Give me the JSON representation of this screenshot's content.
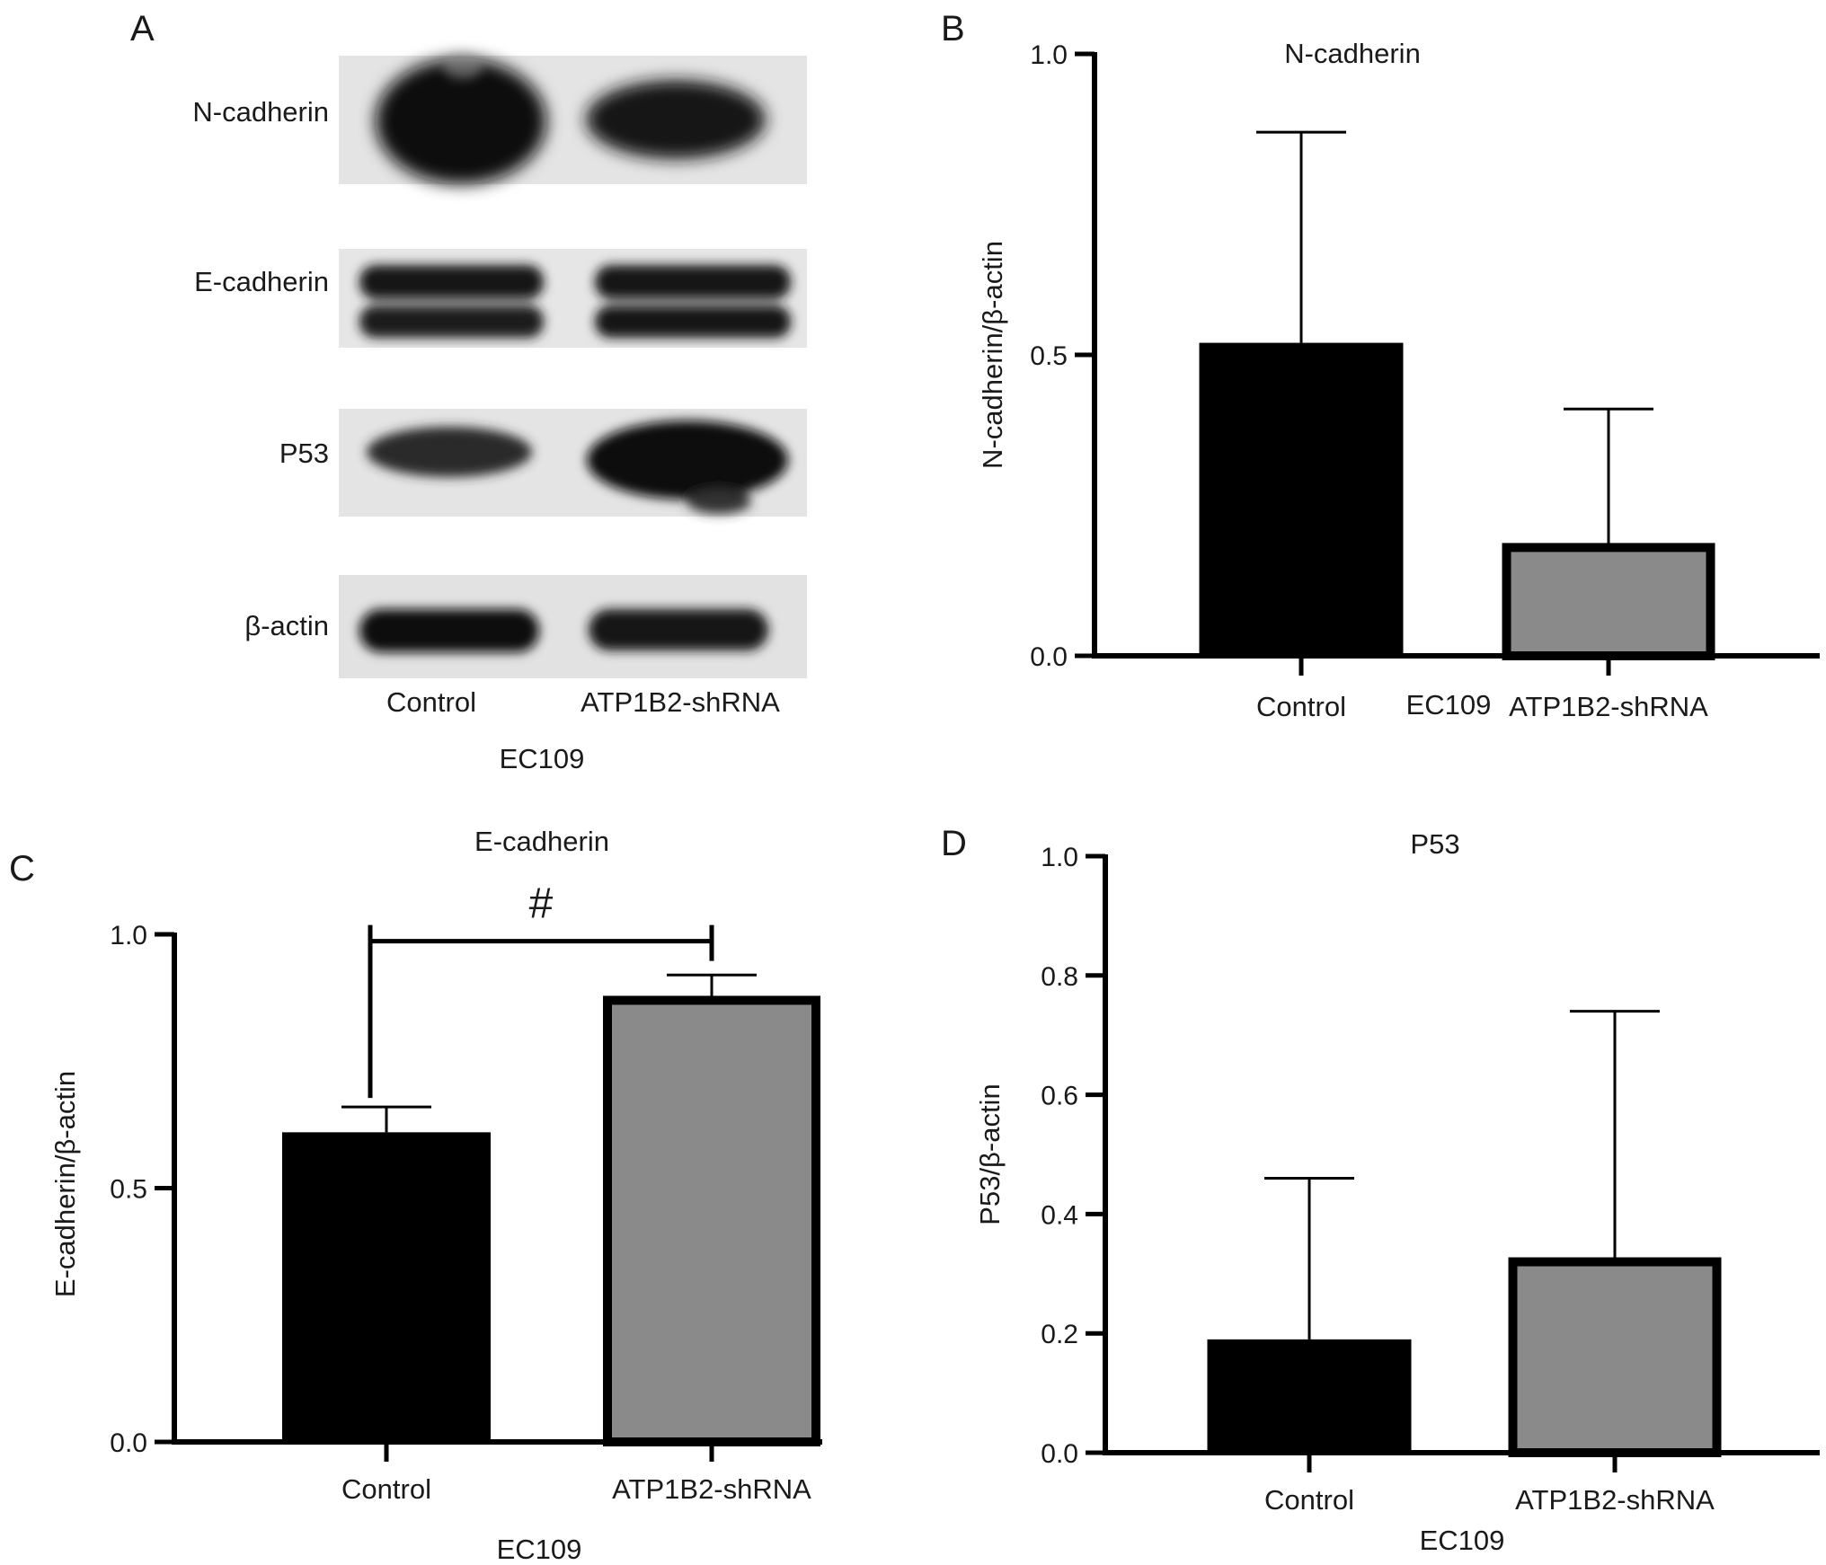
{
  "panels": {
    "a": "A",
    "b": "B",
    "c": "C",
    "d": "D"
  },
  "blot": {
    "rows": [
      "N-cadherin",
      "E-cadherin",
      "P53",
      "β-actin"
    ],
    "lanes": [
      "Control",
      "ATP1B2-shRNA"
    ],
    "cell_line": "EC109"
  },
  "chart_data": [
    {
      "panel": "B",
      "type": "bar",
      "title": "N-cadherin",
      "ylabel": "N-cadherin/β-actin",
      "xlabel": "EC109",
      "categories": [
        "Control",
        "ATP1B2-shRNA"
      ],
      "values": [
        0.52,
        0.18
      ],
      "error_upper": [
        0.87,
        0.41
      ],
      "ylim": [
        0,
        1.0
      ],
      "yticks": [
        0.0,
        0.5,
        1.0
      ],
      "ytick_labels": [
        "0.0",
        "0.5",
        "1.0"
      ],
      "bar_colors": [
        "#000000",
        "#8a8a8a"
      ],
      "significance": []
    },
    {
      "panel": "C",
      "type": "bar",
      "title": "E-cadherin",
      "ylabel": "E-cadherin/β-actin",
      "xlabel": "EC109",
      "categories": [
        "Control",
        "ATP1B2-shRNA"
      ],
      "values": [
        0.61,
        0.87
      ],
      "error_upper": [
        0.66,
        0.92
      ],
      "ylim": [
        0,
        1.0
      ],
      "yticks": [
        0.0,
        0.5,
        1.0
      ],
      "ytick_labels": [
        "0.0",
        "0.5",
        "1.0"
      ],
      "bar_colors": [
        "#000000",
        "#8a8a8a"
      ],
      "significance": [
        {
          "from": 0,
          "to": 1,
          "label": "#",
          "y": 0.99
        }
      ]
    },
    {
      "panel": "D",
      "type": "bar",
      "title": "P53",
      "ylabel": "P53/β-actin",
      "xlabel": "EC109",
      "categories": [
        "Control",
        "ATP1B2-shRNA"
      ],
      "values": [
        0.19,
        0.32
      ],
      "error_upper": [
        0.46,
        0.74
      ],
      "ylim": [
        0,
        1.0
      ],
      "yticks": [
        0.0,
        0.2,
        0.4,
        0.6,
        0.8,
        1.0
      ],
      "ytick_labels": [
        "0.0",
        "0.2",
        "0.4",
        "0.6",
        "0.8",
        "1.0"
      ],
      "bar_colors": [
        "#000000",
        "#8a8a8a"
      ],
      "significance": []
    }
  ]
}
